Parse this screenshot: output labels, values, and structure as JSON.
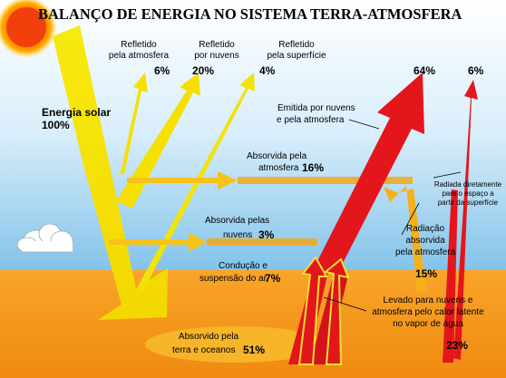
{
  "title": "BALANÇO DE ENERGIA NO SISTEMA TERRA-ATMOSFERA",
  "solar": {
    "label": "Energia solar",
    "value": "100%"
  },
  "reflected_atmosphere": {
    "line1": "Refletido",
    "line2": "pela atmosfera",
    "value": "6%"
  },
  "reflected_clouds": {
    "line1": "Refletido",
    "line2": "por nuvens",
    "value": "20%"
  },
  "reflected_surface": {
    "line1": "Refletido",
    "line2": "pela superfície",
    "value": "4%"
  },
  "emitted": {
    "line1": "Emitida por nuvens",
    "line2": "e pela atmosfera",
    "value": "64%"
  },
  "radiated_direct": {
    "line1": "Radiada diretamente",
    "line2": "para o espaço a",
    "line3": "partir da superfície",
    "value": "6%"
  },
  "absorbed_atmosphere": {
    "line1": "Absorvida pela",
    "line2": "atmosfera",
    "value": "16%"
  },
  "absorbed_clouds": {
    "line1": "Absorvida pelas",
    "line2": "nuvens",
    "value": "3%"
  },
  "conduction": {
    "line1": "Condução e",
    "line2": "suspensão do ar",
    "value": "7%"
  },
  "absorbed_radiation": {
    "line1": "Radiação",
    "line2": "absorvida",
    "line3": "pela atmosfera",
    "value": "15%"
  },
  "latent_heat": {
    "line1": "Levado para nuvens e",
    "line2": "atmosfera pelo calor latente",
    "line3": "no vapor de água",
    "value": "23%"
  },
  "absorbed_ground": {
    "line1": "Absorvido pela",
    "line2": "terra e oceanos",
    "value": "51%"
  },
  "colors": {
    "sky_top": "#ffffff",
    "sky_bottom": "#4aa8e0",
    "ground": "#f59a1e",
    "solar_yellow": "#f5e600",
    "absorbed_orange": "#f7b21a",
    "infrared_red": "#e5141b",
    "sun": "#f04a0a"
  }
}
